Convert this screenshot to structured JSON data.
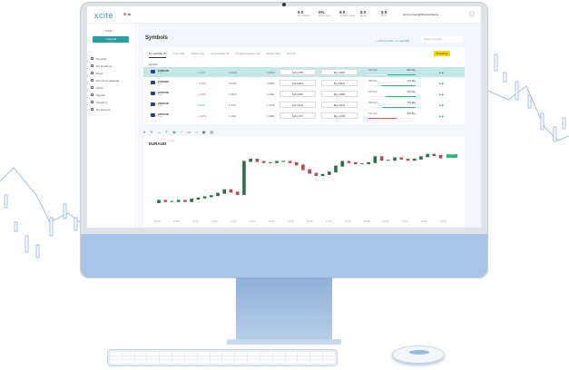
{
  "app": {
    "logo": "xcite",
    "email": "kristyn.roses@fintecsolutions"
  },
  "stats": [
    {
      "value": "$ 0",
      "label": "Net balance"
    },
    {
      "value": "0%",
      "label": "Margin level"
    },
    {
      "value": "$ 0",
      "label": "Available equity"
    },
    {
      "value": "$ 0",
      "label": "Equity"
    },
    {
      "value": "$ 0",
      "label": "Profit"
    }
  ],
  "sidebar": {
    "trade": "‹ Trade",
    "deposit": "+ Deposit",
    "items": [
      {
        "label": "Symbols"
      },
      {
        "label": "My Positions"
      },
      {
        "label": "News"
      },
      {
        "label": "Economic calendar"
      },
      {
        "label": "Alerts"
      },
      {
        "label": "Signals"
      },
      {
        "label": "Academy"
      },
      {
        "label": "My account"
      }
    ]
  },
  "main": {
    "title": "Symbols",
    "add_watchlist": "+ Add symbols - to watchlist",
    "search_placeholder": "Search symbol",
    "settings": "⚙ Settings",
    "tabs": [
      "My watchlist (5)",
      "Forex (66)",
      "Indices (14)",
      "Commodities (7)",
      "Cryptocurrencies (10)",
      "Stocks (160)",
      "ETF (6)"
    ],
    "headers": {
      "symbol": "Symbol"
    },
    "rows": [
      {
        "symbol": "EURAUD",
        "sub": "Forex",
        "change": "↑ 0.12%",
        "up": true,
        "low": "1.6128",
        "high": "1.6612",
        "sell": "Sell 1.6255",
        "buy": "Buy 1.6261",
        "sell_pct": "40% Sell",
        "buy_pct": "60% Buy",
        "buy_frac": 0.6
      },
      {
        "symbol": "EURGBP",
        "sub": "Forex",
        "change": "↓ -0.18%",
        "up": false,
        "low": "0.8456",
        "high": "0.8554",
        "sell": "Sell 0.8504",
        "buy": "Buy 0.8511",
        "sell_pct": "28% Sell",
        "buy_pct": "72% Buy",
        "buy_frac": 0.72
      },
      {
        "symbol": "EURUSD",
        "sub": "Forex",
        "change": "↓ -0.03%",
        "up": false,
        "low": "1.0815",
        "high": "1.0942",
        "sell": "Sell 1.0867",
        "buy": "Buy 1.0868",
        "sell_pct": "37% Sell",
        "buy_pct": "63% Buy",
        "buy_frac": 0.63
      },
      {
        "symbol": "GBPAUD",
        "sub": "Forex",
        "change": "↑ 0.06%",
        "up": true,
        "low": "1.9071",
        "high": "1.9272",
        "sell": "Sell 1.9122",
        "buy": "Buy 1.9134",
        "sell_pct": "30% Sell",
        "buy_pct": "70% Buy",
        "buy_frac": 0.7
      },
      {
        "symbol": "GBPUSD",
        "sub": "Forex",
        "change": "↓ -0.22%",
        "up": false,
        "low": "1.2641",
        "high": "1.2802",
        "sell": "Sell 1.2707",
        "buy": "Buy 1.2708",
        "sell_pct": "60% Sell",
        "buy_pct": "40% Buy",
        "buy_frac": 0.4
      }
    ]
  },
  "chart": {
    "symbol": "EURAUD",
    "change": "↑ 0.12%",
    "price_tag": "1.6261",
    "closes": [
      1.605,
      1.607,
      1.606,
      1.606,
      1.607,
      1.606,
      1.608,
      1.609,
      1.61,
      1.611,
      1.613,
      1.616,
      1.614,
      1.612,
      1.64,
      1.642,
      1.64,
      1.639,
      1.639,
      1.64,
      1.64,
      1.639,
      1.637,
      1.633,
      1.63,
      1.628,
      1.629,
      1.631,
      1.636,
      1.64,
      1.639,
      1.638,
      1.638,
      1.639,
      1.644,
      1.641,
      1.641,
      1.643,
      1.642,
      1.641,
      1.642,
      1.644,
      1.646,
      1.645,
      1.643
    ],
    "xticks": [
      "12:30",
      "13:00",
      "13:30",
      "14:00",
      "14:30",
      "15:00",
      "15:30",
      "16:00",
      "16:30",
      "17:00",
      "17:30",
      "18:00",
      "18:30",
      "19:00",
      "19:30",
      "20:00"
    ]
  },
  "colors": {
    "accent": "#2a9ea4",
    "up": "#2bb673",
    "down": "#e0525b",
    "settings": "#f5d90a",
    "chin": "#a9c4e6"
  }
}
